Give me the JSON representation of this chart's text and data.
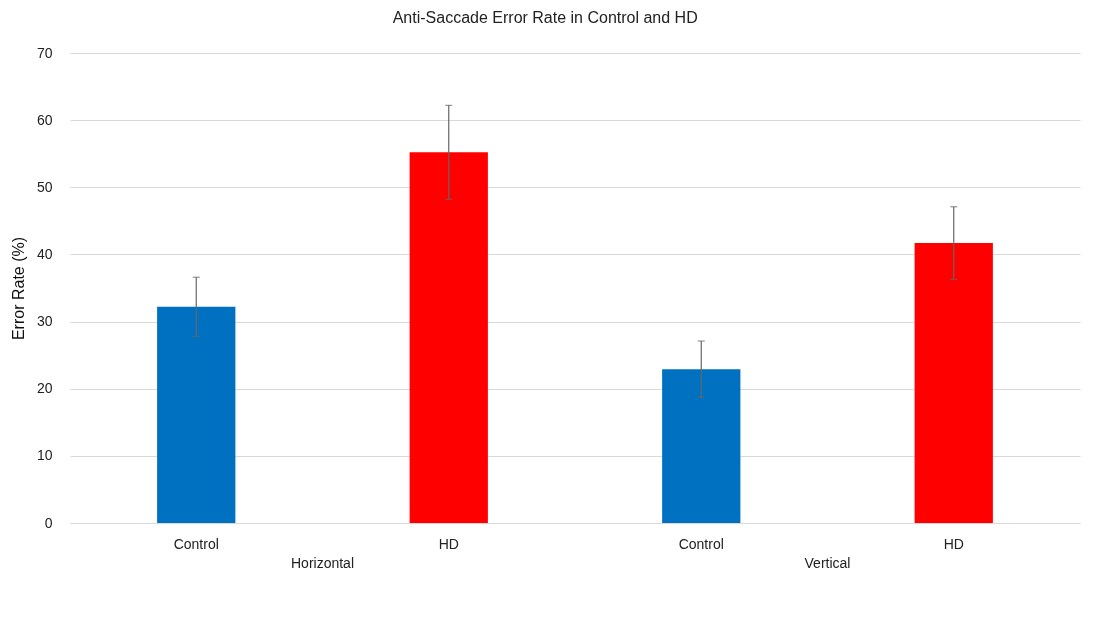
{
  "chart_data": {
    "type": "bar",
    "title": "Anti-Saccade Error Rate in Control and HD",
    "ylabel": "Error Rate (%)",
    "categories": [
      "Control",
      "HD",
      "Control",
      "HD"
    ],
    "values": [
      32.2,
      55.2,
      22.9,
      41.7
    ],
    "errors": [
      4.4,
      7.0,
      4.2,
      5.4
    ],
    "colors": [
      "#0070c0",
      "#ff0000",
      "#0070c0",
      "#ff0000"
    ],
    "ylim": [
      0,
      70
    ],
    "yticks": [
      0,
      10,
      20,
      30,
      40,
      50,
      60,
      70
    ],
    "grid": "y",
    "annotations": [
      "Horizontal",
      "Vertical"
    ]
  }
}
